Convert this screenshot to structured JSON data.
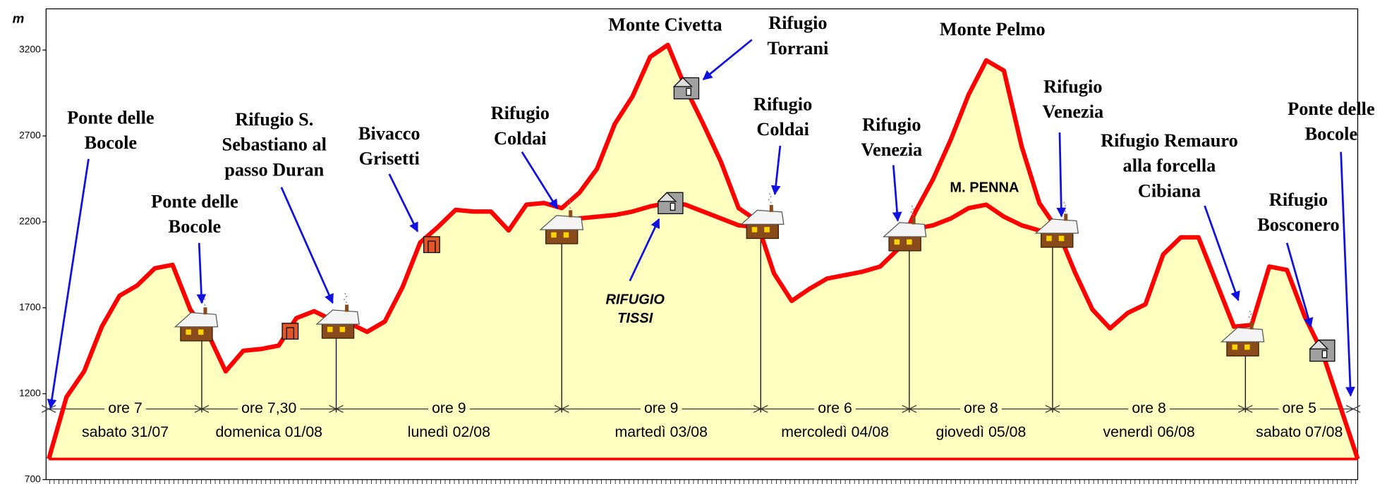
{
  "chart_data": {
    "type": "line",
    "y_label": "m",
    "ylim": [
      700,
      3440
    ],
    "yticks": [
      700,
      1200,
      1700,
      2200,
      2700,
      3200
    ],
    "baseline": 820,
    "fill": "#ffffc0",
    "series": [
      {
        "color": "#ff0000",
        "values": [
          820,
          1180,
          1330,
          1590,
          1770,
          1830,
          1930,
          1950,
          1690,
          1550,
          1330,
          1450,
          1460,
          1480,
          1640,
          1680,
          1630,
          1610,
          1560,
          1620,
          1820,
          2080,
          2170,
          2270,
          2260,
          2260,
          2150,
          2300,
          2310,
          2280,
          2370,
          2510,
          2770,
          2930,
          3160,
          3230,
          2980,
          2770,
          2550,
          2280,
          2210,
          1900,
          1740,
          1810,
          1870,
          1890,
          1910,
          1940,
          2040,
          2260,
          2450,
          2680,
          2940,
          3140,
          3080,
          2640,
          2310,
          2160,
          1910,
          1690,
          1580,
          1670,
          1720,
          2010,
          2110,
          2110,
          1850,
          1590,
          1600,
          1940,
          1920,
          1650,
          1440,
          1130,
          820
        ]
      },
      {
        "color": "#ff0000",
        "values": [
          null,
          null,
          null,
          null,
          null,
          null,
          null,
          null,
          null,
          null,
          null,
          null,
          null,
          null,
          null,
          null,
          null,
          null,
          null,
          null,
          null,
          null,
          null,
          null,
          null,
          null,
          null,
          null,
          null,
          2180,
          2220,
          2230,
          2240,
          2260,
          2290,
          2310,
          2300,
          2260,
          2220,
          2180,
          2170,
          null,
          null,
          null,
          null,
          null,
          null,
          null,
          2130,
          2160,
          2180,
          2220,
          2280,
          2300,
          2230,
          2180,
          2150,
          2110,
          null,
          null,
          null,
          null,
          null,
          null,
          null,
          null,
          null,
          null,
          null,
          null,
          null,
          null,
          null,
          null,
          null,
          null,
          null
        ]
      }
    ],
    "annotations": [
      {
        "lines": [
          "Ponte delle",
          "Bocole"
        ]
      },
      {
        "lines": [
          "Ponte delle",
          "Bocole"
        ]
      },
      {
        "lines": [
          "Rifugio S.",
          "Sebastiano al",
          "passo Duran"
        ]
      },
      {
        "lines": [
          "Bivacco",
          "Grisetti"
        ]
      },
      {
        "lines": [
          "Rifugio",
          "Coldai"
        ]
      },
      {
        "lines": [
          "Monte Civetta"
        ]
      },
      {
        "lines": [
          "Rifugio",
          "Torrani"
        ]
      },
      {
        "lines": [
          "RIFUGIO",
          "TISSI"
        ]
      },
      {
        "lines": [
          "Rifugio",
          "Coldai"
        ]
      },
      {
        "lines": [
          "Rifugio",
          "Venezia"
        ]
      },
      {
        "lines": [
          "Monte Pelmo"
        ]
      },
      {
        "lines": [
          "M. PENNA"
        ]
      },
      {
        "lines": [
          "Rifugio",
          "Venezia"
        ]
      },
      {
        "lines": [
          "Rifugio Remauro",
          "alla forcella",
          "Cibiana"
        ]
      },
      {
        "lines": [
          "Rifugio",
          "Bosconero"
        ]
      },
      {
        "lines": [
          "Ponte delle",
          "Bocole"
        ]
      }
    ],
    "stages": [
      {
        "hours": "ore 7",
        "date": "sabato 31/07"
      },
      {
        "hours": "ore 7,30",
        "date": "domenica 01/08"
      },
      {
        "hours": "ore 9",
        "date": "lunedì 02/08"
      },
      {
        "hours": "ore 9",
        "date": "martedì 03/08"
      },
      {
        "hours": "ore 6",
        "date": "mercoledì 04/08"
      },
      {
        "hours": "ore 8",
        "date": "giovedì 05/08"
      },
      {
        "hours": "ore 8",
        "date": "venerdì 06/08"
      },
      {
        "hours": "ore 5",
        "date": "sabato 07/08"
      }
    ]
  }
}
